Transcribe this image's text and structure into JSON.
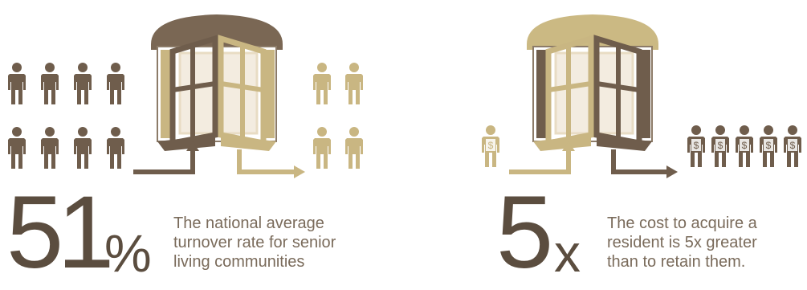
{
  "colors": {
    "dark": "#6f5d4c",
    "tan": "#c9b682",
    "light_tan": "#ddd0a8",
    "pale": "#e8dcc4",
    "frame_line": "#8c7b68",
    "text": "#7a6b5b",
    "number": "#5b4d3f"
  },
  "left_panel": {
    "stat_number": "51",
    "stat_suffix": "%",
    "caption": [
      "The national average",
      "turnover rate for senior",
      "living communities"
    ]
  },
  "right_panel": {
    "stat_number": "5",
    "stat_suffix": "x",
    "caption": [
      "The cost to acquire a",
      "resident is 5x greater",
      "than to retain them."
    ],
    "dollar_sign": "$"
  },
  "icons": [
    "person-icon",
    "revolving-door-icon",
    "arrow-icon",
    "dollar-person-icon"
  ]
}
